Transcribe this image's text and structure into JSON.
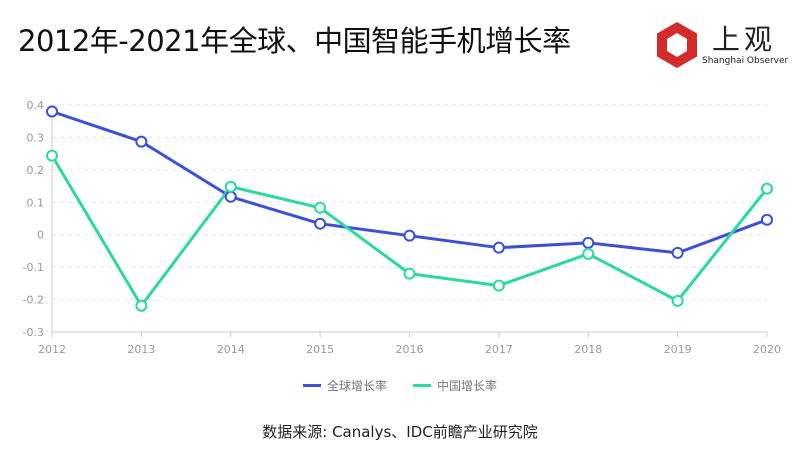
{
  "header": {
    "title": "2012年-2021年全球、中国智能手机增长率"
  },
  "logo": {
    "cn": "上观",
    "en": "Shanghai Observer",
    "color": "#d42a2a"
  },
  "source": "数据来源: Canalys、IDC前瞻产业研究院",
  "chart_data": {
    "type": "line",
    "title": "2012年-2021年全球、中国智能手机增长率",
    "x": [
      "2012",
      "2013",
      "2014",
      "2015",
      "2016",
      "2017",
      "2018",
      "2019",
      "2020"
    ],
    "yticks": [
      "0.4",
      "0.3",
      "0.2",
      "0.1",
      "0",
      "-0.1",
      "-0.2",
      "-0.3"
    ],
    "ylim": [
      -0.3,
      0.4
    ],
    "grid": true,
    "legend_position": "bottom",
    "series": [
      {
        "name": "全球增长率",
        "color": "#3b4fd8",
        "values": [
          0.38,
          0.287,
          0.117,
          0.034,
          -0.003,
          -0.04,
          -0.025,
          -0.056,
          0.046
        ]
      },
      {
        "name": "中国增长率",
        "color": "#2bd9a0",
        "values": [
          0.244,
          -0.219,
          0.148,
          0.083,
          -0.12,
          -0.157,
          -0.059,
          -0.204,
          0.142
        ]
      }
    ]
  }
}
